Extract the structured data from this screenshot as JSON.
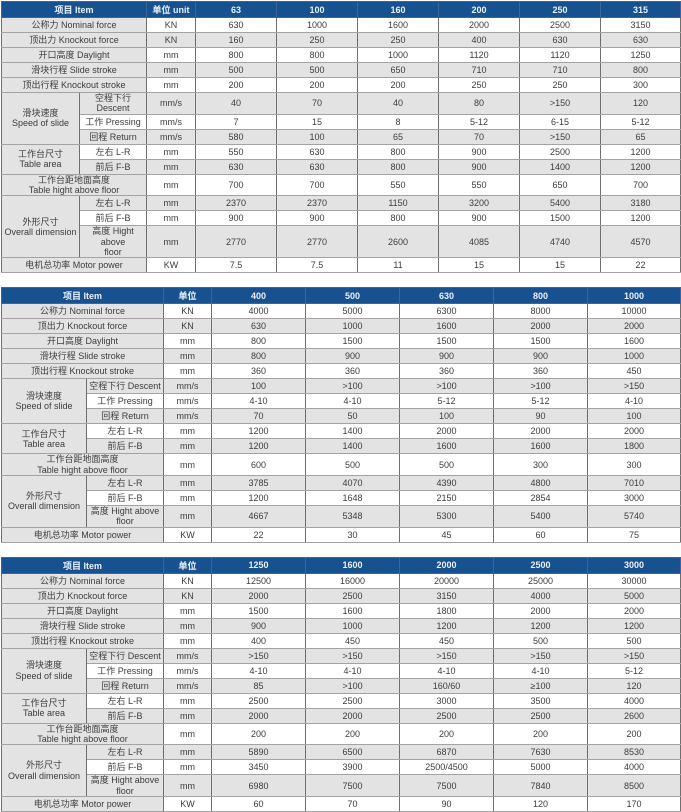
{
  "colors": {
    "header_bg": "#17518f",
    "header_text": "#eaf1fa",
    "stripe_gray": "#e3e3e3",
    "row_white": "#ffffff",
    "text": "#3c3c3c"
  },
  "tables": [
    {
      "header": {
        "item_label": "项目 Item",
        "unit_label": "单位 unit",
        "models": [
          "63",
          "100",
          "160",
          "200",
          "250",
          "315"
        ]
      },
      "rows": [
        {
          "label": "公称力 Nominal force",
          "unit": "KN",
          "values": [
            "630",
            "1000",
            "1600",
            "2000",
            "2500",
            "3150"
          ]
        },
        {
          "label": "顶出力 Knockout force",
          "unit": "KN",
          "values": [
            "160",
            "250",
            "250",
            "400",
            "630",
            "630"
          ]
        },
        {
          "label": "开口高度 Daylight",
          "unit": "mm",
          "values": [
            "800",
            "800",
            "1000",
            "1120",
            "1120",
            "1250"
          ]
        },
        {
          "label": "滑块行程 Slide stroke",
          "unit": "mm",
          "values": [
            "500",
            "500",
            "650",
            "710",
            "710",
            "800"
          ]
        },
        {
          "label": "顶出行程 Knockout stroke",
          "unit": "mm",
          "values": [
            "200",
            "200",
            "200",
            "250",
            "250",
            "300"
          ]
        },
        {
          "group": "滑块速度\nSpeed of slide",
          "rowspan": 3,
          "sub": "空程下行 Descent",
          "unit": "mm/s",
          "values": [
            "40",
            "70",
            "40",
            "80",
            ">150",
            "120"
          ]
        },
        {
          "sub": "工作 Pressing",
          "unit": "mm/s",
          "values": [
            "7",
            "15",
            "8",
            "5-12",
            "6-15",
            "5-12"
          ]
        },
        {
          "sub": "回程 Return",
          "unit": "mm/s",
          "values": [
            "580",
            "100",
            "65",
            "70",
            ">150",
            "65"
          ]
        },
        {
          "group": "工作台尺寸\nTable area",
          "rowspan": 2,
          "sub": "左右 L-R",
          "unit": "mm",
          "values": [
            "550",
            "630",
            "800",
            "900",
            "2500",
            "1200"
          ]
        },
        {
          "sub": "前后 F-B",
          "unit": "mm",
          "values": [
            "630",
            "630",
            "800",
            "900",
            "1400",
            "1200"
          ]
        },
        {
          "label": "工作台距地面高度\nTable hight above floor",
          "unit": "mm",
          "values": [
            "700",
            "700",
            "550",
            "550",
            "650",
            "700"
          ]
        },
        {
          "group": "外形尺寸\nOverall dimension",
          "rowspan": 3,
          "sub": "左右 L-R",
          "unit": "mm",
          "values": [
            "2370",
            "2370",
            "1150",
            "3200",
            "5400",
            "3180"
          ]
        },
        {
          "sub": "前后 F-B",
          "unit": "mm",
          "values": [
            "900",
            "900",
            "800",
            "900",
            "1500",
            "1200"
          ]
        },
        {
          "sub": "高度 Hight above\nfloor",
          "unit": "mm",
          "values": [
            "2770",
            "2770",
            "2600",
            "4085",
            "4740",
            "4570"
          ]
        },
        {
          "label": "电机总功率 Motor power",
          "unit": "KW",
          "values": [
            "7.5",
            "7.5",
            "11",
            "15",
            "15",
            "22"
          ]
        }
      ]
    },
    {
      "header": {
        "item_label": "项目 Item",
        "unit_label": "单位",
        "models": [
          "400",
          "500",
          "630",
          "800",
          "1000"
        ]
      },
      "rows": [
        {
          "label": "公称力 Nominal force",
          "unit": "KN",
          "values": [
            "4000",
            "5000",
            "6300",
            "8000",
            "10000"
          ]
        },
        {
          "label": "顶出力 Knockout force",
          "unit": "KN",
          "values": [
            "630",
            "1000",
            "1600",
            "2000",
            "2000"
          ]
        },
        {
          "label": "开口高度 Daylight",
          "unit": "mm",
          "values": [
            "800",
            "1500",
            "1500",
            "1500",
            "1600"
          ]
        },
        {
          "label": "滑块行程 Slide stroke",
          "unit": "mm",
          "values": [
            "800",
            "900",
            "900",
            "900",
            "1000"
          ]
        },
        {
          "label": "顶出行程 Knockout stroke",
          "unit": "mm",
          "values": [
            "360",
            "360",
            "360",
            "360",
            "450"
          ]
        },
        {
          "group": "滑块速度\nSpeed of slide",
          "rowspan": 3,
          "sub": "空程下行 Descent",
          "unit": "mm/s",
          "values": [
            "100",
            ">100",
            ">100",
            ">100",
            ">150"
          ]
        },
        {
          "sub": "工作 Pressing",
          "unit": "mm/s",
          "values": [
            "4-10",
            "4-10",
            "5-12",
            "5-12",
            "4-10"
          ]
        },
        {
          "sub": "回程 Return",
          "unit": "mm/s",
          "values": [
            "70",
            "50",
            "100",
            "90",
            "100"
          ]
        },
        {
          "group": "工作台尺寸\nTable area",
          "rowspan": 2,
          "sub": "左右 L-R",
          "unit": "mm",
          "values": [
            "1200",
            "1400",
            "2000",
            "2000",
            "2000"
          ]
        },
        {
          "sub": "前后 F-B",
          "unit": "mm",
          "values": [
            "1200",
            "1400",
            "1600",
            "1600",
            "1800"
          ]
        },
        {
          "label": "工作台距地面高度\nTable hight above floor",
          "unit": "mm",
          "values": [
            "600",
            "500",
            "500",
            "300",
            "300"
          ]
        },
        {
          "group": "外形尺寸\nOverall dimension",
          "rowspan": 3,
          "sub": "左右 L-R",
          "unit": "mm",
          "values": [
            "3785",
            "4070",
            "4390",
            "4800",
            "7010"
          ]
        },
        {
          "sub": "前后 F-B",
          "unit": "mm",
          "values": [
            "1200",
            "1648",
            "2150",
            "2854",
            "3000"
          ]
        },
        {
          "sub": "高度 Hight above\nfloor",
          "unit": "mm",
          "values": [
            "4667",
            "5348",
            "5300",
            "5400",
            "5740"
          ]
        },
        {
          "label": "电机总功率 Motor power",
          "unit": "KW",
          "values": [
            "22",
            "30",
            "45",
            "60",
            "75"
          ]
        }
      ]
    },
    {
      "header": {
        "item_label": "项目 Item",
        "unit_label": "单位",
        "models": [
          "1250",
          "1600",
          "2000",
          "2500",
          "3000"
        ]
      },
      "rows": [
        {
          "label": "公称力 Nominal force",
          "unit": "KN",
          "values": [
            "12500",
            "16000",
            "20000",
            "25000",
            "30000"
          ]
        },
        {
          "label": "顶出力 Knockout force",
          "unit": "KN",
          "values": [
            "2000",
            "2500",
            "3150",
            "4000",
            "5000"
          ]
        },
        {
          "label": "开口高度 Daylight",
          "unit": "mm",
          "values": [
            "1500",
            "1600",
            "1800",
            "2000",
            "2000"
          ]
        },
        {
          "label": "滑块行程 Slide stroke",
          "unit": "mm",
          "values": [
            "900",
            "1000",
            "1200",
            "1200",
            "1200"
          ]
        },
        {
          "label": "顶出行程 Knockout stroke",
          "unit": "mm",
          "values": [
            "400",
            "450",
            "450",
            "500",
            "500"
          ]
        },
        {
          "group": "滑块速度\nSpeed of slide",
          "rowspan": 3,
          "sub": "空程下行 Descent",
          "unit": "mm/s",
          "values": [
            ">150",
            ">150",
            ">150",
            ">150",
            ">150"
          ]
        },
        {
          "sub": "工作 Pressing",
          "unit": "mm/s",
          "values": [
            "4-10",
            "4-10",
            "4-10",
            "4-10",
            "5-12"
          ]
        },
        {
          "sub": "回程 Return",
          "unit": "mm/s",
          "values": [
            "85",
            ">100",
            "160/60",
            "≥100",
            "120"
          ]
        },
        {
          "group": "工作台尺寸\nTable area",
          "rowspan": 2,
          "sub": "左右 L-R",
          "unit": "mm",
          "values": [
            "2500",
            "2500",
            "3000",
            "3500",
            "4000"
          ]
        },
        {
          "sub": "前后 F-B",
          "unit": "mm",
          "values": [
            "2000",
            "2000",
            "2500",
            "2500",
            "2600"
          ]
        },
        {
          "label": "工作台距地面高度\nTable hight above floor",
          "unit": "mm",
          "values": [
            "200",
            "200",
            "200",
            "200",
            "200"
          ]
        },
        {
          "group": "外形尺寸\nOverall dimension",
          "rowspan": 3,
          "sub": "左右 L-R",
          "unit": "mm",
          "values": [
            "5890",
            "6500",
            "6870",
            "7630",
            "8530"
          ]
        },
        {
          "sub": "前后 F-B",
          "unit": "mm",
          "values": [
            "3450",
            "3900",
            "2500/4500",
            "5000",
            "4000"
          ]
        },
        {
          "sub": "高度 Hight above\nfloor",
          "unit": "mm",
          "values": [
            "6980",
            "7500",
            "7500",
            "7840",
            "8500"
          ]
        },
        {
          "label": "电机总功率 Motor power",
          "unit": "KW",
          "values": [
            "60",
            "70",
            "90",
            "120",
            "170"
          ]
        }
      ]
    }
  ]
}
